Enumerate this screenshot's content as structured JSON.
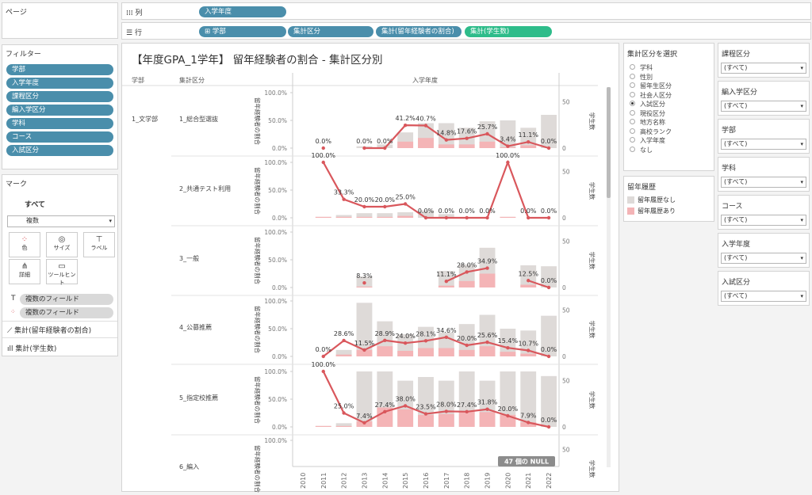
{
  "pages": {
    "title": "ページ"
  },
  "shelves": {
    "columns_label": "列",
    "rows_label": "行",
    "column_pills": [
      "入学年度"
    ],
    "row_pills": [
      "学部",
      "集計区分",
      "集計(留年経験者の割合)",
      "集計(学生数)"
    ]
  },
  "filters": {
    "title": "フィルター",
    "items": [
      "学部",
      "入学年度",
      "課程区分",
      "編入学区分",
      "学科",
      "コース",
      "入試区分"
    ]
  },
  "marks": {
    "title": "マーク",
    "all_label": "すべて",
    "type": "複数",
    "buttons": [
      "色",
      "サイズ",
      "ラベル",
      "詳細",
      "ツールヒント"
    ],
    "fields": [
      "複数のフィールド",
      "複数のフィールド"
    ],
    "measures": [
      "集計(留年経験者の割合)",
      "集計(学生数)"
    ]
  },
  "viz": {
    "title": "【年度GPA_1学年】 留年経験者の割合 - 集計区分別",
    "col_header_faculty": "学部",
    "col_header_segment": "集計区分",
    "col_header_year": "入学年度",
    "faculty": "1_文学部",
    "left_axis_title": "留年経験者の割合",
    "right_axis_title": "学生数",
    "pct_ticks": [
      "100.0%",
      "50.0%",
      "0.0%"
    ],
    "count_ticks": [
      "50",
      "0"
    ],
    "null_badge": "47 個の NULL"
  },
  "chart_data": {
    "type": "bar",
    "xlabel": "入学年度",
    "years": [
      "2010",
      "2011",
      "2012",
      "2013",
      "2014",
      "2015",
      "2016",
      "2017",
      "2018",
      "2019",
      "2020",
      "2021",
      "2022"
    ],
    "legend_title": "留年履歴",
    "series_names": [
      "留年履歴なし",
      "留年履歴あり",
      "留年経験者の割合"
    ],
    "colors": {
      "no_history": "#dedad8",
      "history": "#f4b4b6",
      "line": "#d9575c"
    },
    "left_axis_range": [
      0,
      1
    ],
    "right_axis_range": [
      0,
      60
    ],
    "rows": [
      {
        "segment": "1_総合型選抜",
        "rate": [
          null,
          0.0,
          null,
          0.0,
          0.0,
          0.412,
          0.407,
          0.148,
          0.176,
          0.257,
          0.034,
          0.111,
          0.0
        ],
        "total": [
          0,
          0,
          0,
          2,
          4,
          17,
          27,
          27,
          22,
          29,
          30,
          22,
          36
        ],
        "repeat": [
          0,
          0,
          0,
          0,
          0,
          7,
          11,
          4,
          4,
          7,
          1,
          3,
          0
        ],
        "labels": [
          "",
          "0.0%",
          "",
          "0.0%",
          "0.0%",
          "41.2%",
          "40.7%",
          "14.8%",
          "17.6%",
          "25.7%",
          "3.4%",
          "11.1%",
          "0.0%"
        ]
      },
      {
        "segment": "2_共通テスト利用",
        "rate": [
          null,
          1.0,
          0.333,
          0.2,
          0.2,
          0.25,
          0.0,
          0.0,
          0.0,
          0.0,
          1.0,
          0.0,
          0.0
        ],
        "total": [
          0,
          1,
          3,
          5,
          5,
          6,
          8,
          4,
          0,
          0,
          1,
          0,
          0
        ],
        "repeat": [
          0,
          1,
          1,
          1,
          1,
          2,
          0,
          0,
          0,
          0,
          1,
          0,
          0
        ],
        "labels": [
          "",
          "100.0%",
          "33.3%",
          "20.0%",
          "20.0%",
          "25.0%",
          "0.0%",
          "0.0%",
          "0.0%",
          "0.0%",
          "100.0%",
          "0.0%",
          "0.0%"
        ]
      },
      {
        "segment": "3_一般",
        "rate": [
          null,
          null,
          null,
          0.083,
          null,
          null,
          null,
          0.111,
          0.28,
          0.349,
          null,
          0.125,
          0.0
        ],
        "total": [
          0,
          0,
          0,
          12,
          0,
          0,
          0,
          18,
          25,
          43,
          0,
          24,
          23
        ],
        "repeat": [
          0,
          0,
          0,
          1,
          0,
          0,
          0,
          2,
          7,
          15,
          0,
          3,
          0
        ],
        "labels": [
          "",
          "",
          "",
          "8.3%",
          "",
          "",
          "",
          "11.1%",
          "28.0%",
          "34.9%",
          "",
          "12.5%",
          "0.0%"
        ]
      },
      {
        "segment": "4_公募推薦",
        "rate": [
          null,
          0.0,
          0.286,
          0.115,
          0.289,
          0.24,
          0.281,
          0.346,
          0.2,
          0.256,
          0.154,
          0.107,
          0.0
        ],
        "total": [
          0,
          0,
          7,
          58,
          38,
          24,
          32,
          26,
          35,
          45,
          30,
          28,
          44
        ],
        "repeat": [
          0,
          0,
          2,
          7,
          11,
          6,
          9,
          9,
          7,
          11,
          5,
          3,
          0
        ],
        "labels": [
          "",
          "0.0%",
          "28.6%",
          "11.5%",
          "28.9%",
          "24.0%",
          "28.1%",
          "34.6%",
          "20.0%",
          "25.6%",
          "15.4%",
          "10.7%",
          "0.0%"
        ]
      },
      {
        "segment": "5_指定校推薦",
        "rate": [
          null,
          1.0,
          0.25,
          0.074,
          0.274,
          0.38,
          0.235,
          0.28,
          0.274,
          0.318,
          0.2,
          0.079,
          0.0
        ],
        "total": [
          0,
          1,
          4,
          84,
          77,
          50,
          54,
          50,
          62,
          50,
          65,
          66,
          55
        ],
        "repeat": [
          0,
          1,
          1,
          6,
          21,
          19,
          13,
          14,
          17,
          16,
          13,
          5,
          0
        ],
        "labels": [
          "",
          "100.0%",
          "25.0%",
          "7.4%",
          "27.4%",
          "38.0%",
          "23.5%",
          "28.0%",
          "27.4%",
          "31.8%",
          "20.0%",
          "7.9%",
          "0.0%"
        ]
      },
      {
        "segment": "6_編入",
        "rate": [],
        "total": [],
        "repeat": [],
        "labels": []
      }
    ]
  },
  "param": {
    "title": "集計区分を選択",
    "options": [
      "学科",
      "性別",
      "留年生区分",
      "社会人区分",
      "入試区分",
      "現役区分",
      "地方名称",
      "高校ランク",
      "入学年度",
      "なし"
    ],
    "selected_index": 4
  },
  "legend": {
    "title": "留年履歴",
    "items": [
      "留年履歴なし",
      "留年履歴あり"
    ]
  },
  "right_filters": [
    {
      "title": "課程区分",
      "value": "(すべて)"
    },
    {
      "title": "編入学区分",
      "value": "(すべて)"
    },
    {
      "title": "学部",
      "value": "(すべて)"
    },
    {
      "title": "学科",
      "value": "(すべて)"
    },
    {
      "title": "コース",
      "value": "(すべて)"
    },
    {
      "title": "入学年度",
      "value": "(すべて)"
    },
    {
      "title": "入試区分",
      "value": "(すべて)"
    }
  ]
}
